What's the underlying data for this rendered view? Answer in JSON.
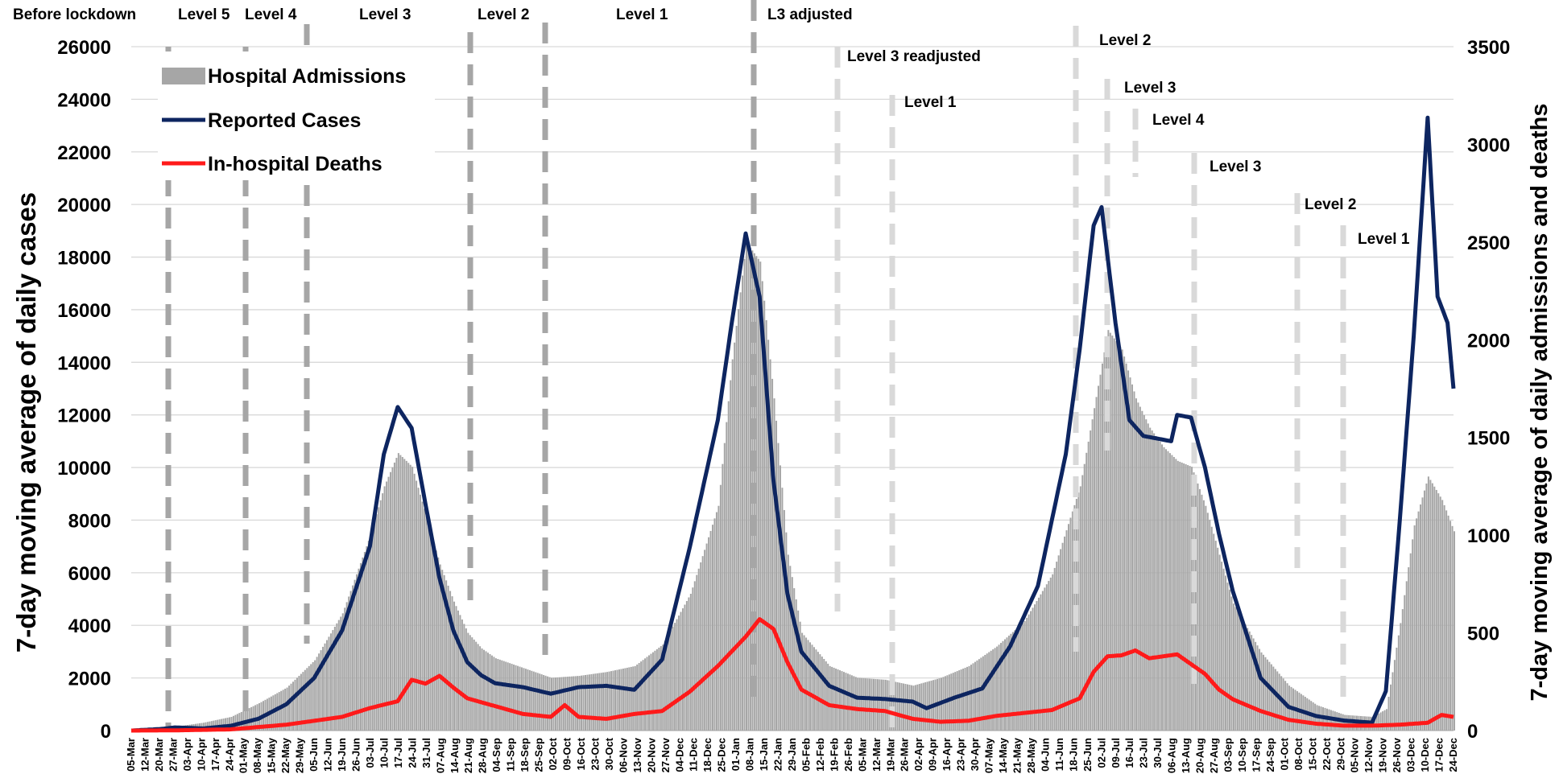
{
  "chart_data": {
    "type": "bar+line",
    "title": "",
    "y_left": {
      "label": "7-day moving average of daily cases",
      "ticks": [
        0,
        2000,
        4000,
        6000,
        8000,
        10000,
        12000,
        14000,
        16000,
        18000,
        20000,
        22000,
        24000,
        26000
      ],
      "range": [
        0,
        26000
      ]
    },
    "y_right": {
      "label": "7-day moving  average of daily admissions and deaths",
      "ticks": [
        0,
        500,
        1000,
        1500,
        2000,
        2500,
        3000,
        3500
      ],
      "range": [
        0,
        3500
      ]
    },
    "x_axis": {
      "start_date": "2020-03-05",
      "end_date": "2021-12-30",
      "tick_labels": [
        "05-Mar",
        "12-Mar",
        "20-Mar",
        "27-Mar",
        "03-Apr",
        "10-Apr",
        "17-Apr",
        "24-Apr",
        "01-May",
        "08-May",
        "15-May",
        "22-May",
        "29-May",
        "05-Jun",
        "12-Jun",
        "19-Jun",
        "26-Jun",
        "03-Jul",
        "10-Jul",
        "17-Jul",
        "24-Jul",
        "31-Jul",
        "07-Aug",
        "14-Aug",
        "21-Aug",
        "28-Aug",
        "04-Sep",
        "11-Sep",
        "18-Sep",
        "25-Sep",
        "02-Oct",
        "09-Oct",
        "16-Oct",
        "23-Oct",
        "30-Oct",
        "06-Nov",
        "13-Nov",
        "20-Nov",
        "27-Nov",
        "04-Dec",
        "11-Dec",
        "18-Dec",
        "25-Dec",
        "01-Jan",
        "08-Jan",
        "15-Jan",
        "22-Jan",
        "29-Jan",
        "05-Feb",
        "12-Feb",
        "19-Feb",
        "26-Feb",
        "05-Mar",
        "12-Mar",
        "19-Mar",
        "26-Mar",
        "02-Apr",
        "09-Apr",
        "16-Apr",
        "23-Apr",
        "30-Apr",
        "07-May",
        "14-May",
        "21-May",
        "28-May",
        "04-Jun",
        "11-Jun",
        "18-Jun",
        "25-Jun",
        "02-Jul",
        "09-Jul",
        "16-Jul",
        "23-Jul",
        "30-Jul",
        "06-Aug",
        "13-Aug",
        "20-Aug",
        "27-Aug",
        "03-Sep",
        "10-Sep",
        "17-Sep",
        "24-Sep",
        "01-Oct",
        "08-Oct",
        "15-Oct",
        "22-Oct",
        "29-Oct",
        "05-Nov",
        "12-Nov",
        "19-Nov",
        "26-Nov",
        "03-Dec",
        "10-Dec",
        "17-Dec",
        "24-Dec"
      ]
    },
    "legend": {
      "placement": "top-left",
      "entries": [
        {
          "name": "Hospital Admissions",
          "color": "#a6a6a6",
          "kind": "bar"
        },
        {
          "name": "Reported Cases",
          "color": "#0d2560",
          "kind": "line"
        },
        {
          "name": "In-hospital Deaths",
          "color": "#ff1a1a",
          "kind": "line"
        }
      ]
    },
    "grid": "horizontal",
    "series": [
      {
        "name": "Hospital Admissions",
        "axis": "right",
        "kind": "area-bars",
        "color": "#a6a6a6",
        "points": [
          [
            "2020-03-05",
            0
          ],
          [
            "2020-03-20",
            5
          ],
          [
            "2020-03-27",
            20
          ],
          [
            "2020-04-10",
            40
          ],
          [
            "2020-04-24",
            70
          ],
          [
            "2020-05-08",
            140
          ],
          [
            "2020-05-22",
            220
          ],
          [
            "2020-06-05",
            360
          ],
          [
            "2020-06-19",
            600
          ],
          [
            "2020-07-03",
            1000
          ],
          [
            "2020-07-10",
            1250
          ],
          [
            "2020-07-17",
            1420
          ],
          [
            "2020-07-24",
            1350
          ],
          [
            "2020-07-31",
            1100
          ],
          [
            "2020-08-07",
            850
          ],
          [
            "2020-08-14",
            660
          ],
          [
            "2020-08-21",
            500
          ],
          [
            "2020-08-28",
            420
          ],
          [
            "2020-09-04",
            370
          ],
          [
            "2020-09-18",
            320
          ],
          [
            "2020-10-02",
            270
          ],
          [
            "2020-10-16",
            280
          ],
          [
            "2020-10-30",
            300
          ],
          [
            "2020-11-13",
            330
          ],
          [
            "2020-11-27",
            440
          ],
          [
            "2020-12-11",
            700
          ],
          [
            "2020-12-25",
            1150
          ],
          [
            "2021-01-01",
            1900
          ],
          [
            "2021-01-08",
            2500
          ],
          [
            "2021-01-15",
            2400
          ],
          [
            "2021-01-22",
            1700
          ],
          [
            "2021-01-29",
            900
          ],
          [
            "2021-02-05",
            500
          ],
          [
            "2021-02-19",
            330
          ],
          [
            "2021-03-05",
            270
          ],
          [
            "2021-03-19",
            260
          ],
          [
            "2021-04-02",
            230
          ],
          [
            "2021-04-16",
            270
          ],
          [
            "2021-04-30",
            330
          ],
          [
            "2021-05-14",
            430
          ],
          [
            "2021-05-28",
            560
          ],
          [
            "2021-06-11",
            800
          ],
          [
            "2021-06-25",
            1250
          ],
          [
            "2021-07-02",
            1650
          ],
          [
            "2021-07-09",
            2050
          ],
          [
            "2021-07-16",
            1950
          ],
          [
            "2021-07-23",
            1700
          ],
          [
            "2021-07-30",
            1550
          ],
          [
            "2021-08-06",
            1450
          ],
          [
            "2021-08-13",
            1380
          ],
          [
            "2021-08-20",
            1350
          ],
          [
            "2021-08-27",
            1150
          ],
          [
            "2021-09-03",
            900
          ],
          [
            "2021-09-10",
            650
          ],
          [
            "2021-09-24",
            400
          ],
          [
            "2021-10-08",
            230
          ],
          [
            "2021-10-22",
            130
          ],
          [
            "2021-11-05",
            80
          ],
          [
            "2021-11-19",
            70
          ],
          [
            "2021-11-26",
            110
          ],
          [
            "2021-12-03",
            550
          ],
          [
            "2021-12-10",
            1050
          ],
          [
            "2021-12-17",
            1300
          ],
          [
            "2021-12-24",
            1180
          ],
          [
            "2021-12-30",
            1020
          ]
        ]
      },
      {
        "name": "Reported Cases",
        "axis": "left",
        "kind": "line",
        "color": "#0d2560",
        "points": [
          [
            "2020-03-05",
            0
          ],
          [
            "2020-03-20",
            60
          ],
          [
            "2020-03-27",
            120
          ],
          [
            "2020-04-10",
            80
          ],
          [
            "2020-04-24",
            180
          ],
          [
            "2020-05-08",
            450
          ],
          [
            "2020-05-22",
            1000
          ],
          [
            "2020-06-05",
            2000
          ],
          [
            "2020-06-19",
            3800
          ],
          [
            "2020-07-03",
            7000
          ],
          [
            "2020-07-10",
            10500
          ],
          [
            "2020-07-17",
            12300
          ],
          [
            "2020-07-24",
            11500
          ],
          [
            "2020-07-31",
            8600
          ],
          [
            "2020-08-07",
            5800
          ],
          [
            "2020-08-14",
            3800
          ],
          [
            "2020-08-21",
            2600
          ],
          [
            "2020-08-28",
            2100
          ],
          [
            "2020-09-04",
            1800
          ],
          [
            "2020-09-18",
            1650
          ],
          [
            "2020-10-02",
            1400
          ],
          [
            "2020-10-16",
            1650
          ],
          [
            "2020-10-30",
            1700
          ],
          [
            "2020-11-13",
            1550
          ],
          [
            "2020-11-27",
            2700
          ],
          [
            "2020-12-11",
            7000
          ],
          [
            "2020-12-25",
            11800
          ],
          [
            "2021-01-01",
            15500
          ],
          [
            "2021-01-08",
            18900
          ],
          [
            "2021-01-15",
            16500
          ],
          [
            "2021-01-22",
            9500
          ],
          [
            "2021-01-29",
            5200
          ],
          [
            "2021-02-05",
            3000
          ],
          [
            "2021-02-19",
            1700
          ],
          [
            "2021-03-05",
            1250
          ],
          [
            "2021-03-19",
            1200
          ],
          [
            "2021-04-02",
            1100
          ],
          [
            "2021-04-09",
            850
          ],
          [
            "2021-04-23",
            1250
          ],
          [
            "2021-05-07",
            1600
          ],
          [
            "2021-05-21",
            3200
          ],
          [
            "2021-06-04",
            5500
          ],
          [
            "2021-06-18",
            10500
          ],
          [
            "2021-06-25",
            14500
          ],
          [
            "2021-07-02",
            19200
          ],
          [
            "2021-07-06",
            19900
          ],
          [
            "2021-07-13",
            15500
          ],
          [
            "2021-07-20",
            11800
          ],
          [
            "2021-07-27",
            11200
          ],
          [
            "2021-08-03",
            11100
          ],
          [
            "2021-08-10",
            11000
          ],
          [
            "2021-08-13",
            12000
          ],
          [
            "2021-08-20",
            11900
          ],
          [
            "2021-08-27",
            10000
          ],
          [
            "2021-09-03",
            7500
          ],
          [
            "2021-09-10",
            5300
          ],
          [
            "2021-09-24",
            2000
          ],
          [
            "2021-10-08",
            900
          ],
          [
            "2021-10-22",
            550
          ],
          [
            "2021-11-05",
            380
          ],
          [
            "2021-11-19",
            300
          ],
          [
            "2021-11-26",
            1500
          ],
          [
            "2021-12-03",
            8000
          ],
          [
            "2021-12-10",
            15000
          ],
          [
            "2021-12-17",
            23300
          ],
          [
            "2021-12-22",
            16500
          ],
          [
            "2021-12-27",
            15500
          ],
          [
            "2021-12-30",
            13000
          ]
        ]
      },
      {
        "name": "In-hospital Deaths",
        "axis": "right",
        "kind": "line",
        "color": "#ff1a1a",
        "points": [
          [
            "2020-03-05",
            0
          ],
          [
            "2020-03-27",
            1
          ],
          [
            "2020-04-24",
            6
          ],
          [
            "2020-05-22",
            30
          ],
          [
            "2020-06-05",
            50
          ],
          [
            "2020-06-19",
            70
          ],
          [
            "2020-07-03",
            115
          ],
          [
            "2020-07-17",
            150
          ],
          [
            "2020-07-24",
            260
          ],
          [
            "2020-07-31",
            240
          ],
          [
            "2020-08-07",
            280
          ],
          [
            "2020-08-14",
            220
          ],
          [
            "2020-08-21",
            165
          ],
          [
            "2020-09-04",
            125
          ],
          [
            "2020-09-18",
            85
          ],
          [
            "2020-10-02",
            70
          ],
          [
            "2020-10-09",
            130
          ],
          [
            "2020-10-16",
            70
          ],
          [
            "2020-10-30",
            60
          ],
          [
            "2020-11-13",
            85
          ],
          [
            "2020-11-27",
            100
          ],
          [
            "2020-12-11",
            200
          ],
          [
            "2020-12-25",
            330
          ],
          [
            "2021-01-08",
            480
          ],
          [
            "2021-01-15",
            570
          ],
          [
            "2021-01-22",
            520
          ],
          [
            "2021-01-29",
            350
          ],
          [
            "2021-02-05",
            210
          ],
          [
            "2021-02-19",
            130
          ],
          [
            "2021-03-05",
            110
          ],
          [
            "2021-03-19",
            100
          ],
          [
            "2021-04-02",
            60
          ],
          [
            "2021-04-16",
            45
          ],
          [
            "2021-04-30",
            50
          ],
          [
            "2021-05-14",
            75
          ],
          [
            "2021-05-28",
            90
          ],
          [
            "2021-06-11",
            105
          ],
          [
            "2021-06-25",
            165
          ],
          [
            "2021-07-02",
            300
          ],
          [
            "2021-07-09",
            380
          ],
          [
            "2021-07-16",
            385
          ],
          [
            "2021-07-23",
            410
          ],
          [
            "2021-07-30",
            370
          ],
          [
            "2021-08-06",
            380
          ],
          [
            "2021-08-13",
            390
          ],
          [
            "2021-08-20",
            340
          ],
          [
            "2021-08-27",
            290
          ],
          [
            "2021-09-03",
            210
          ],
          [
            "2021-09-10",
            160
          ],
          [
            "2021-09-24",
            100
          ],
          [
            "2021-10-08",
            55
          ],
          [
            "2021-10-22",
            35
          ],
          [
            "2021-11-05",
            25
          ],
          [
            "2021-11-19",
            25
          ],
          [
            "2021-12-03",
            30
          ],
          [
            "2021-12-17",
            40
          ],
          [
            "2021-12-24",
            80
          ],
          [
            "2021-12-30",
            70
          ]
        ]
      }
    ],
    "phases": [
      {
        "label": "Before lockdown",
        "date": "",
        "style": "none"
      },
      {
        "label": "Level 5",
        "date": "2020-03-27",
        "style": "dark"
      },
      {
        "label": "Level 4",
        "date": "2020-05-01",
        "style": "dark"
      },
      {
        "label": "Level 3",
        "date": "2020-06-01",
        "style": "dark"
      },
      {
        "label": "Level 2",
        "date": "2020-08-18",
        "style": "dark"
      },
      {
        "label": "Level 1",
        "date": "2020-09-21",
        "style": "dark"
      },
      {
        "label": "L3 adjusted",
        "date": "2020-12-29",
        "style": "dark"
      },
      {
        "label": "Level 3 readjusted",
        "date": "2021-03-01",
        "style": "light"
      },
      {
        "label": "Level 1",
        "date": "2021-03-01",
        "style": "light-second"
      },
      {
        "label": "Level 2",
        "date": "2021-05-31",
        "style": "light"
      },
      {
        "label": "Level 3",
        "date": "2021-06-16",
        "style": "light"
      },
      {
        "label": "Level 4",
        "date": "2021-06-28",
        "style": "light"
      },
      {
        "label": "Level 3",
        "date": "2021-07-26",
        "style": "light"
      },
      {
        "label": "Level 2",
        "date": "2021-09-13",
        "style": "light"
      },
      {
        "label": "Level 1",
        "date": "2021-10-01",
        "style": "light"
      }
    ]
  }
}
